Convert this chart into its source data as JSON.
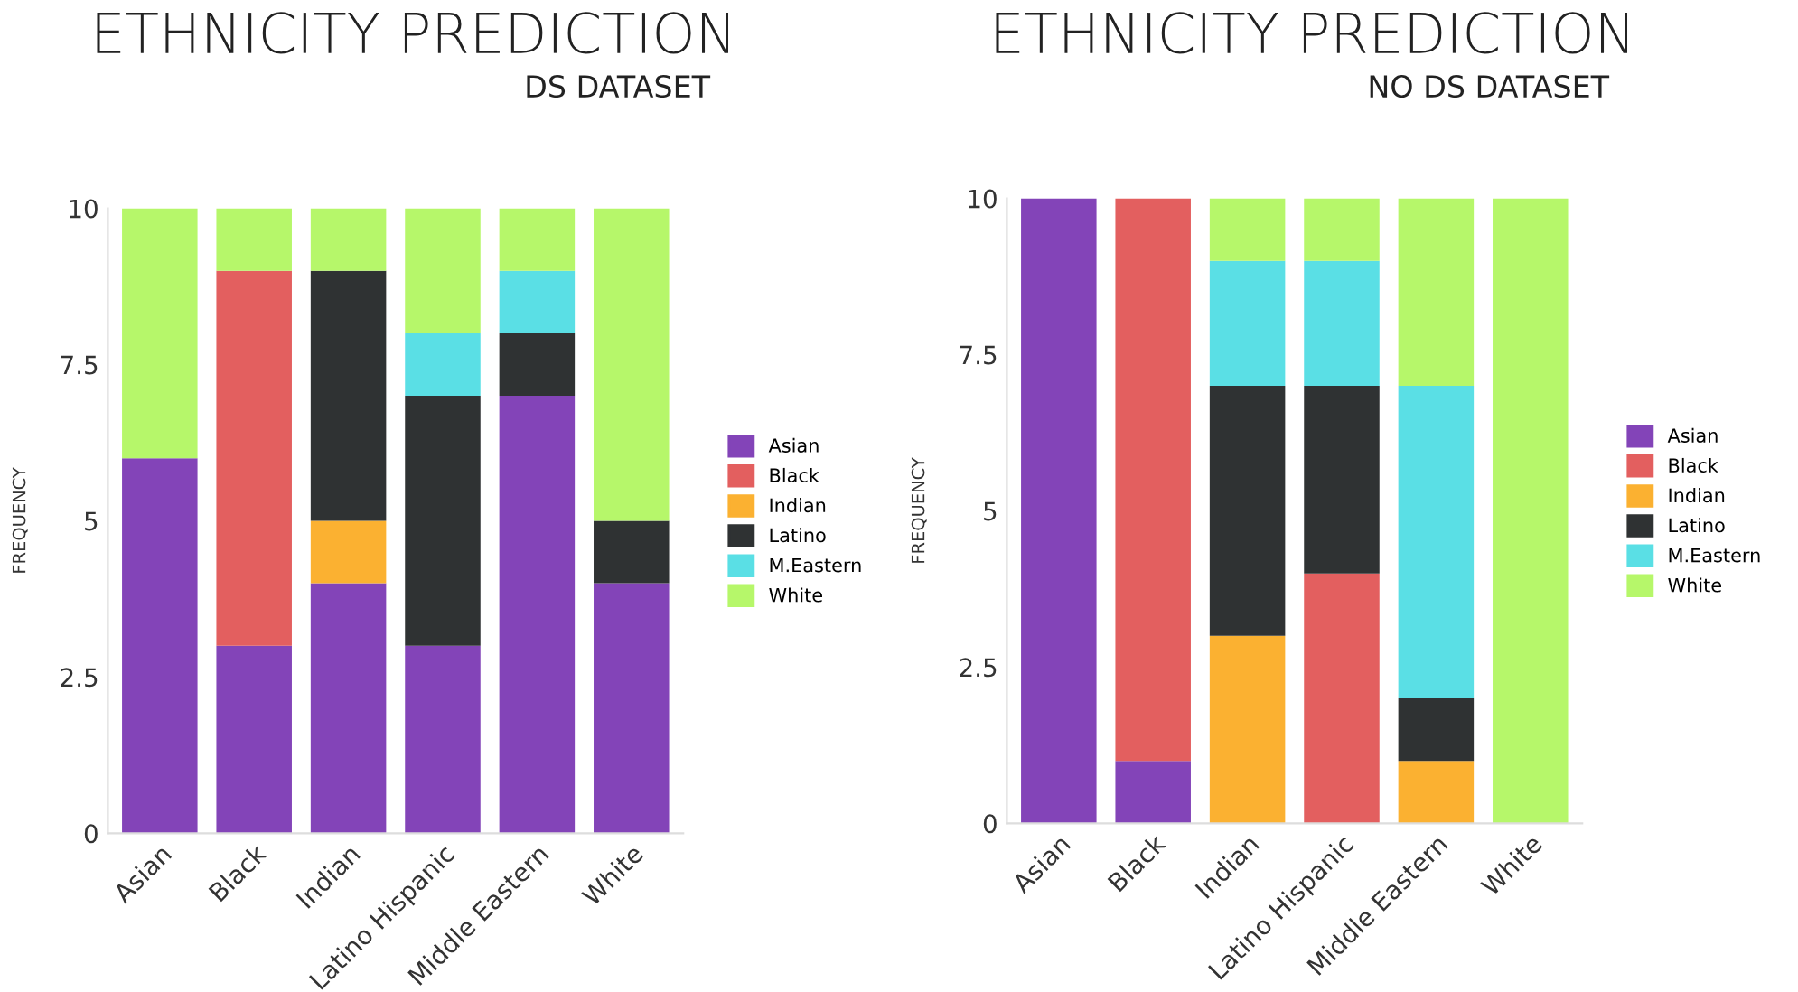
{
  "chart_data": [
    {
      "type": "bar",
      "title": "ETHNICITY PREDICTION",
      "subtitle": "DS DATASET",
      "ylabel": "FREQUENCY",
      "stacked": true,
      "categories": [
        "Asian",
        "Black",
        "Indian",
        "Latino Hispanic",
        "Middle Eastern",
        "White"
      ],
      "ylim": [
        0,
        10
      ],
      "yticks": [
        0,
        2.5,
        5,
        7.5,
        10
      ],
      "grid": false,
      "legend": "right",
      "series": [
        {
          "name": "Asian",
          "color": "#8344b8",
          "values": [
            6,
            3,
            4,
            3,
            7,
            4
          ]
        },
        {
          "name": "Black",
          "color": "#e35f5f",
          "values": [
            null,
            6,
            null,
            null,
            null,
            null
          ]
        },
        {
          "name": "Indian",
          "color": "#fbb131",
          "values": [
            null,
            null,
            1,
            null,
            null,
            null
          ]
        },
        {
          "name": "Latino",
          "color": "#2f3233",
          "values": [
            null,
            null,
            4,
            4,
            1,
            1
          ]
        },
        {
          "name": "M.Eastern",
          "color": "#5adfe5",
          "values": [
            null,
            null,
            null,
            1,
            1,
            null
          ]
        },
        {
          "name": "White",
          "color": "#b6f76a",
          "values": [
            4,
            1,
            1,
            2,
            1,
            5
          ]
        }
      ]
    },
    {
      "type": "bar",
      "title": "ETHNICITY PREDICTION",
      "subtitle": "NO DS DATASET",
      "ylabel": "FREQUENCY",
      "stacked": true,
      "categories": [
        "Asian",
        "Black",
        "Indian",
        "Latino Hispanic",
        "Middle Eastern",
        "White"
      ],
      "ylim": [
        0,
        10
      ],
      "yticks": [
        0,
        2.5,
        5,
        7.5,
        10
      ],
      "grid": false,
      "legend": "right",
      "series": [
        {
          "name": "Asian",
          "color": "#8344b8",
          "values": [
            10,
            1,
            null,
            null,
            null,
            null
          ]
        },
        {
          "name": "Black",
          "color": "#e35f5f",
          "values": [
            null,
            9,
            null,
            4,
            null,
            null
          ]
        },
        {
          "name": "Indian",
          "color": "#fbb131",
          "values": [
            null,
            null,
            3,
            null,
            1,
            null
          ]
        },
        {
          "name": "Latino",
          "color": "#2f3233",
          "values": [
            null,
            null,
            4,
            3,
            1,
            null
          ]
        },
        {
          "name": "M.Eastern",
          "color": "#5adfe5",
          "values": [
            null,
            null,
            2,
            2,
            5,
            null
          ]
        },
        {
          "name": "White",
          "color": "#b6f76a",
          "values": [
            null,
            null,
            1,
            1,
            3,
            10
          ]
        }
      ]
    }
  ]
}
